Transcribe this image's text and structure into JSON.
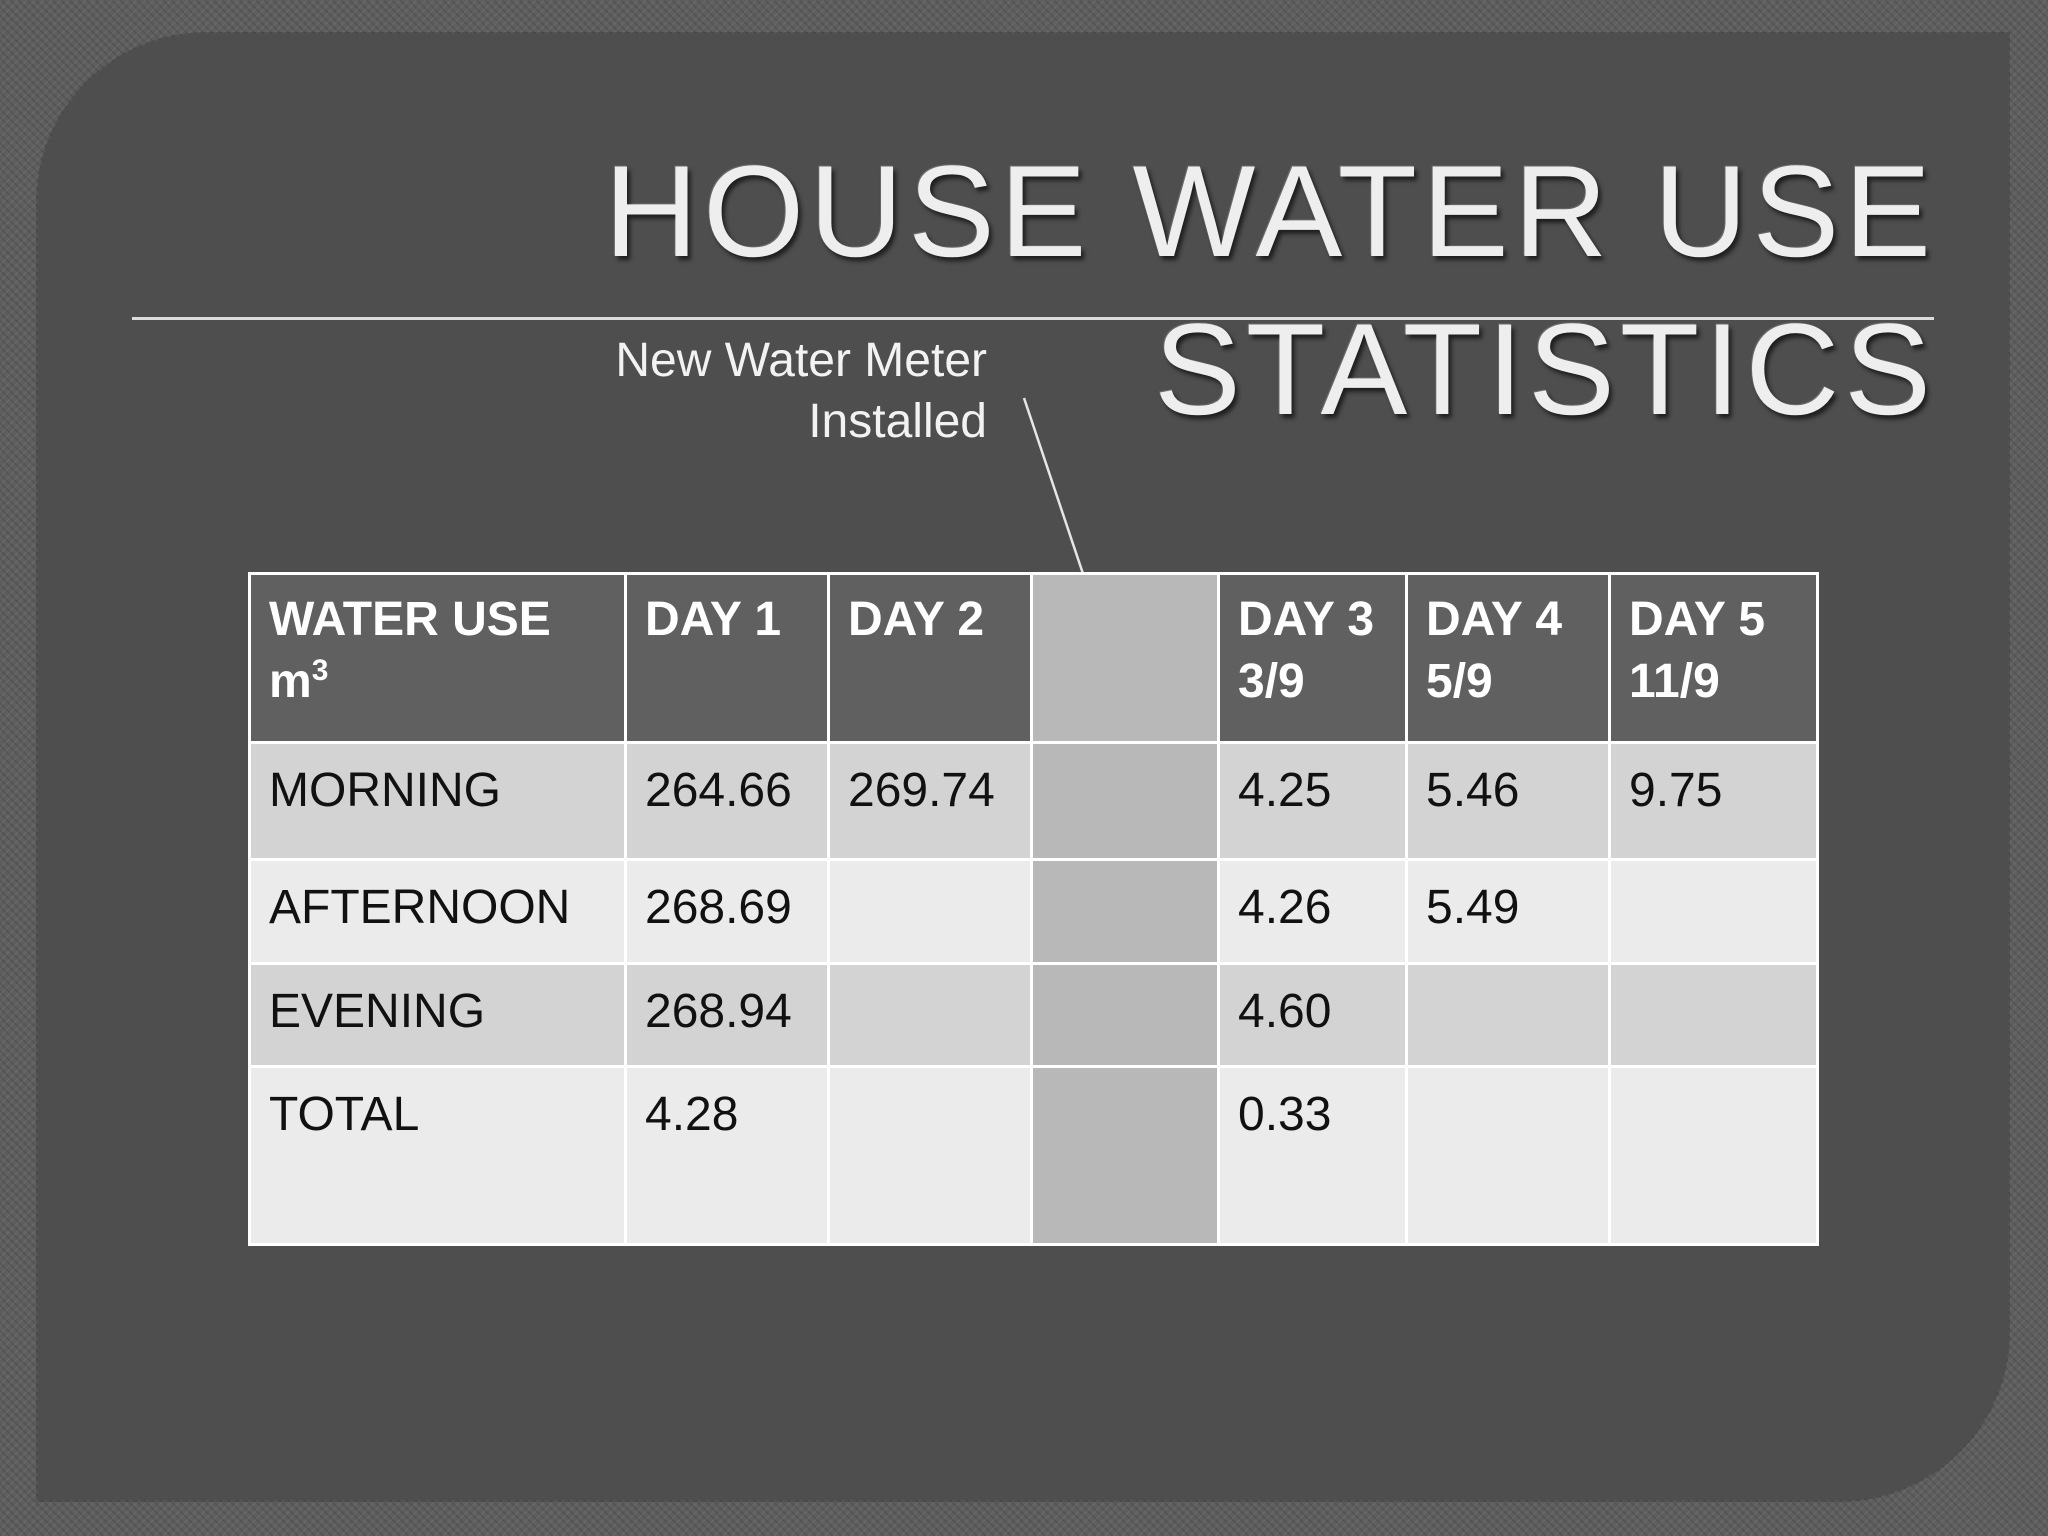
{
  "title": {
    "line1": "HOUSE WATER USE",
    "line2": "STATISTICS"
  },
  "callout": {
    "line1": "New Water Meter",
    "line2": "Installed"
  },
  "table": {
    "header": {
      "label_line1": "WATER USE",
      "label_unit": "m",
      "label_exponent": "3",
      "day1": "DAY 1",
      "day2": "DAY 2",
      "day3_line1": "DAY 3",
      "day3_line2": "3/9",
      "day4_line1": "DAY 4",
      "day4_line2": "5/9",
      "day5_line1": "DAY 5",
      "day5_line2": "11/9"
    },
    "rows": [
      {
        "label": "MORNING",
        "day1": "264.66",
        "day2": "269.74",
        "day3": "4.25",
        "day4": "5.46",
        "day5": "9.75"
      },
      {
        "label": "AFTERNOON",
        "day1": "268.69",
        "day2": "",
        "day3": "4.26",
        "day4": "5.49",
        "day5": ""
      },
      {
        "label": "EVENING",
        "day1": "268.94",
        "day2": "",
        "day3": "4.60",
        "day4": "",
        "day5": ""
      },
      {
        "label": "TOTAL",
        "day1": "4.28",
        "day2": "",
        "day3": "0.33",
        "day4": "",
        "day5": ""
      }
    ]
  },
  "colors": {
    "slide_background": "#4e4e4e",
    "header_fill": "#606060",
    "row_band_dark": "#d3d3d3",
    "row_band_light": "#ebebeb",
    "meter_gap_column": "#b8b8b8"
  }
}
